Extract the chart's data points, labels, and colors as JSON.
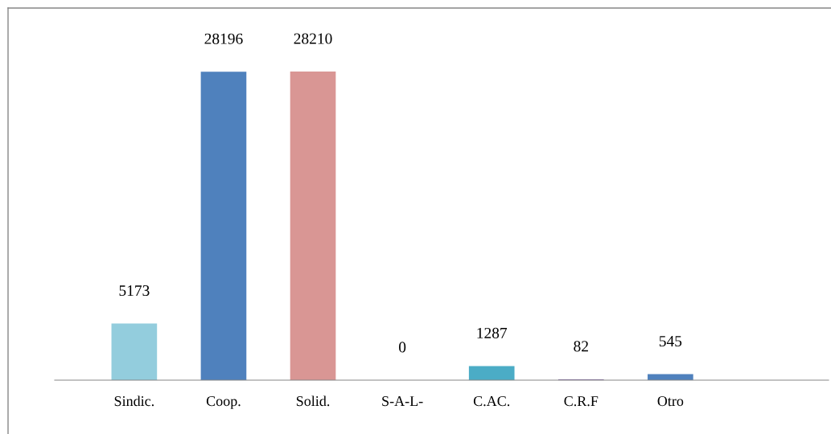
{
  "chart_data": {
    "type": "bar",
    "categories": [
      "Sindic.",
      "Coop.",
      "Solid.",
      "S-A-L-",
      "C.AC.",
      "C.R.F",
      "Otro"
    ],
    "values": [
      5173,
      28196,
      28210,
      0,
      1287,
      82,
      545
    ],
    "colors": [
      "#93cddd",
      "#4f81bd",
      "#d99694",
      "#c0504d",
      "#4bacc6",
      "#8064a2",
      "#4f81bd"
    ],
    "data_labels": true,
    "grid": false,
    "legend": false,
    "tick_labels": "x"
  }
}
